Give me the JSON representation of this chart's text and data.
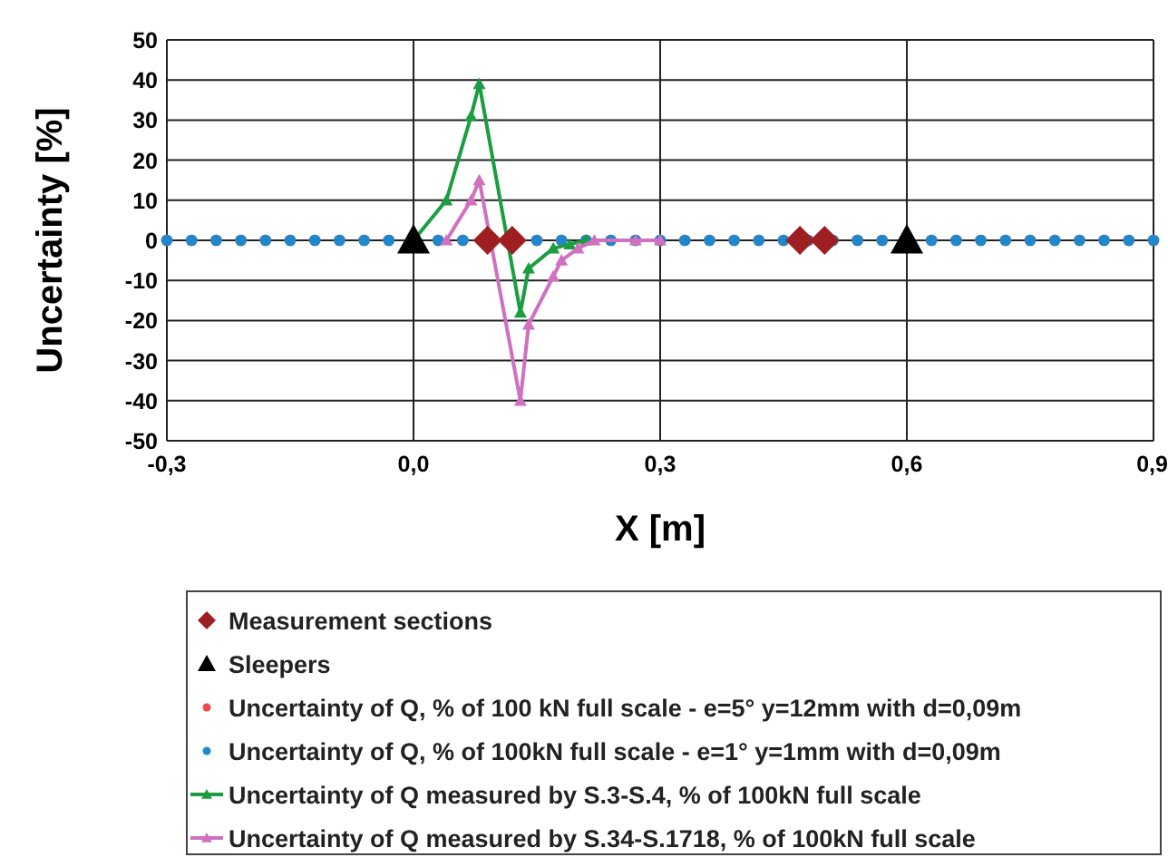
{
  "chart_data": {
    "type": "scatter",
    "xlabel": "X [m]",
    "ylabel": "Uncertainty [%]",
    "xlim": [
      -0.3,
      0.9
    ],
    "xticks": [
      {
        "value": -0.3,
        "label": "-0,3"
      },
      {
        "value": 0,
        "label": "0,0"
      },
      {
        "value": 0.3,
        "label": "0,3"
      },
      {
        "value": 0.6,
        "label": "0,6"
      },
      {
        "value": 0.9,
        "label": "0,9"
      }
    ],
    "ylim": [
      -50,
      50
    ],
    "yticks": [
      -50,
      -40,
      -30,
      -20,
      -10,
      0,
      10,
      20,
      30,
      40,
      50
    ],
    "grid": true,
    "legend": "bottom",
    "series": [
      {
        "name": "Measurement sections",
        "marker": "diamond",
        "color": "#9e1f22",
        "x": [
          0.09,
          0.12,
          0.47,
          0.5
        ],
        "values": [
          0,
          0,
          0,
          0
        ]
      },
      {
        "name": "Sleepers",
        "marker": "triangle",
        "color": "#000000",
        "x": [
          0,
          0.6
        ],
        "values": [
          0,
          0
        ]
      },
      {
        "name": "Uncertainty of Q, % of 100 kN full scale - e=5° y=12mm with d=0,09m",
        "marker": "circle",
        "color": "#f04a4a",
        "x": [
          -0.3,
          -0.27,
          -0.24,
          -0.21,
          -0.18,
          -0.15,
          -0.12,
          -0.09,
          -0.06,
          -0.03,
          0,
          0.03,
          0.06,
          0.09,
          0.12,
          0.15,
          0.18,
          0.21,
          0.24,
          0.27,
          0.3,
          0.33,
          0.36,
          0.39,
          0.42,
          0.45,
          0.48,
          0.51,
          0.54,
          0.57,
          0.6,
          0.63,
          0.66,
          0.69,
          0.72,
          0.75,
          0.78,
          0.81,
          0.84,
          0.87,
          0.9
        ],
        "values": [
          0,
          0,
          0,
          0,
          0,
          0,
          0,
          0,
          0,
          0,
          null,
          0,
          0,
          null,
          null,
          0,
          0,
          0,
          0,
          0,
          0,
          0,
          0,
          0,
          0,
          0,
          0,
          0,
          0,
          0,
          null,
          0,
          0,
          0,
          0,
          0,
          0,
          0,
          0,
          0,
          0
        ]
      },
      {
        "name": "Uncertainty of Q, % of 100kN full scale - e=1° y=1mm with d=0,09m",
        "marker": "circle",
        "color": "#1f88cc",
        "x": [
          -0.3,
          -0.27,
          -0.24,
          -0.21,
          -0.18,
          -0.15,
          -0.12,
          -0.09,
          -0.06,
          -0.03,
          0,
          0.03,
          0.06,
          0.09,
          0.12,
          0.15,
          0.18,
          0.21,
          0.24,
          0.27,
          0.3,
          0.33,
          0.36,
          0.39,
          0.42,
          0.45,
          0.48,
          0.51,
          0.54,
          0.57,
          0.6,
          0.63,
          0.66,
          0.69,
          0.72,
          0.75,
          0.78,
          0.81,
          0.84,
          0.87,
          0.9
        ],
        "values": [
          0,
          0,
          0,
          0,
          0,
          0,
          0,
          0,
          0,
          0,
          null,
          0,
          0,
          null,
          null,
          0,
          0,
          0,
          0,
          0,
          0,
          0,
          0,
          0,
          0,
          0,
          0,
          0,
          0,
          0,
          null,
          0,
          0,
          0,
          0,
          0,
          0,
          0,
          0,
          0,
          0
        ]
      },
      {
        "name": "Uncertainty of Q measured by S.3-S.4, % of 100kN full scale",
        "type": "line",
        "marker": "triangle",
        "color": "#1a9e40",
        "x": [
          0,
          0.04,
          0.07,
          0.08,
          0.13,
          0.14,
          0.17,
          0.19,
          0.21
        ],
        "values": [
          0,
          10,
          31,
          39,
          -18,
          -7,
          -2,
          -1,
          0
        ]
      },
      {
        "name": "Uncertainty of Q measured by S.34-S.1718, % of 100kN full scale",
        "type": "line",
        "marker": "triangle",
        "color": "#d070c0",
        "x": [
          0.04,
          0.07,
          0.08,
          0.13,
          0.14,
          0.17,
          0.18,
          0.2,
          0.22,
          0.27,
          0.3
        ],
        "values": [
          0,
          10,
          15,
          -40,
          -21,
          -9,
          -5,
          -2,
          0,
          0,
          0
        ]
      }
    ]
  }
}
